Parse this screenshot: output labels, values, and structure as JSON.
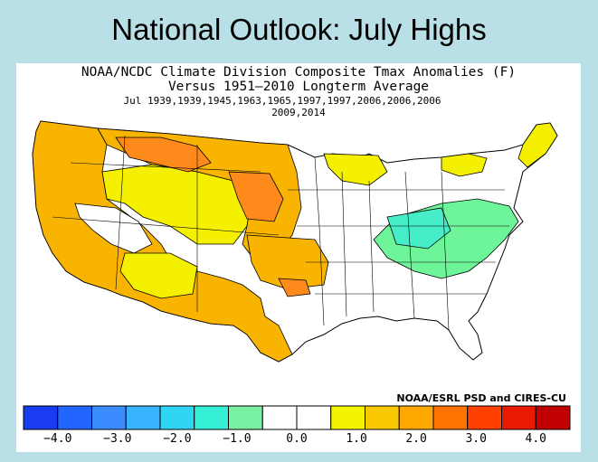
{
  "slide": {
    "title": "National Outlook: July Highs"
  },
  "map": {
    "title_line1": "NOAA/NCDC Climate Division Composite Tmax Anomalies (F)",
    "title_line2": "Versus 1951–2010 Longterm Average",
    "title_line3": "Jul  1939,1939,1945,1963,1965,1997,1997,2006,2006,2006",
    "title_line4": "2009,2014",
    "credit": "NOAA/ESRL PSD and CIRES-CU",
    "regions": [
      {
        "name": "northern-plains-rockies",
        "level": "2.0 to 3.0",
        "color": "#ff8a1c"
      },
      {
        "name": "west-coast-southwest-texas",
        "level": "1.0 to 2.0",
        "color": "#f8b400"
      },
      {
        "name": "intermountain-west",
        "level": "0.5 to 1.0",
        "color": "#f4f000"
      },
      {
        "name": "ohio-valley-mid-atlantic",
        "level": "-1.0 to -0.5",
        "color": "#6ef59a"
      },
      {
        "name": "kentucky-west-virginia",
        "level": "-1.5 to -1.0",
        "color": "#45edc8"
      },
      {
        "name": "southeast-upper-midwest",
        "level": "-0.5 to 0.5",
        "color": "#ffffff"
      }
    ]
  },
  "colorbar": {
    "colors": [
      "#1a3cf0",
      "#2266ff",
      "#3a8cff",
      "#38b4ff",
      "#2fd6f4",
      "#35f0d6",
      "#7af0a2",
      "#ffffff",
      "#ffffff",
      "#f4f400",
      "#f8c800",
      "#ffa800",
      "#ff7400",
      "#ff4000",
      "#e81a00",
      "#c00000"
    ],
    "ticks": [
      {
        "label": "−4.0",
        "value": -4.0
      },
      {
        "label": "−3.0",
        "value": -3.0
      },
      {
        "label": "−2.0",
        "value": -2.0
      },
      {
        "label": "−1.0",
        "value": -1.0
      },
      {
        "label": "0.0",
        "value": 0.0
      },
      {
        "label": "1.0",
        "value": 1.0
      },
      {
        "label": "2.0",
        "value": 2.0
      },
      {
        "label": "3.0",
        "value": 3.0
      },
      {
        "label": "4.0",
        "value": 4.0
      }
    ]
  }
}
